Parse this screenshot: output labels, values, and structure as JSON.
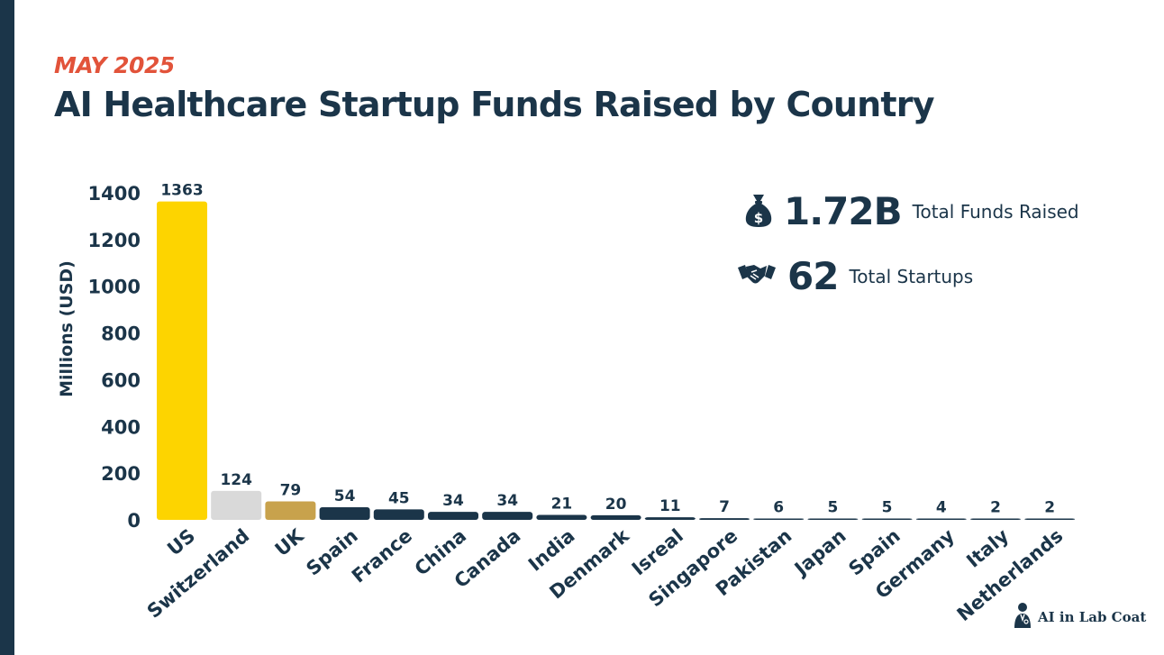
{
  "header": {
    "subtitle": "MAY 2025",
    "title": "AI Healthcare Startup Funds Raised by Country"
  },
  "stats": {
    "funds": {
      "value": "1.72B",
      "label": "Total Funds Raised",
      "icon": "money-bag-icon"
    },
    "startups": {
      "value": "62",
      "label": "Total Startups",
      "icon": "handshake-icon"
    }
  },
  "brand": {
    "name": "AI in Lab Coat",
    "icon": "doctor-logo-icon"
  },
  "colors": {
    "navy": "#1b3549",
    "accent": "#e2533a",
    "gold": "#fdd400",
    "silver": "#d9d9d9",
    "bronze": "#c8a24c"
  },
  "chart_data": {
    "type": "bar",
    "title": "AI Healthcare Startup Funds Raised by Country",
    "xlabel": "",
    "ylabel": "Millions (USD)",
    "ylim": [
      0,
      1400
    ],
    "yticks": [
      0,
      200,
      400,
      600,
      800,
      1000,
      1200,
      1400
    ],
    "grid": false,
    "categories": [
      "US",
      "Switzerland",
      "UK",
      "Spain",
      "France",
      "China",
      "Canada",
      "India",
      "Denmark",
      "Isreal",
      "Singapore",
      "Pakistan",
      "Japan",
      "Spain",
      "Germany",
      "Italy",
      "Netherlands"
    ],
    "values": [
      1363,
      124,
      79,
      54,
      45,
      34,
      34,
      21,
      20,
      11,
      7,
      6,
      5,
      5,
      4,
      2,
      2
    ],
    "bar_colors": [
      "#fdd400",
      "#d9d9d9",
      "#c8a24c",
      "#1b3549",
      "#1b3549",
      "#1b3549",
      "#1b3549",
      "#1b3549",
      "#1b3549",
      "#1b3549",
      "#1b3549",
      "#1b3549",
      "#1b3549",
      "#1b3549",
      "#1b3549",
      "#1b3549",
      "#1b3549"
    ]
  }
}
